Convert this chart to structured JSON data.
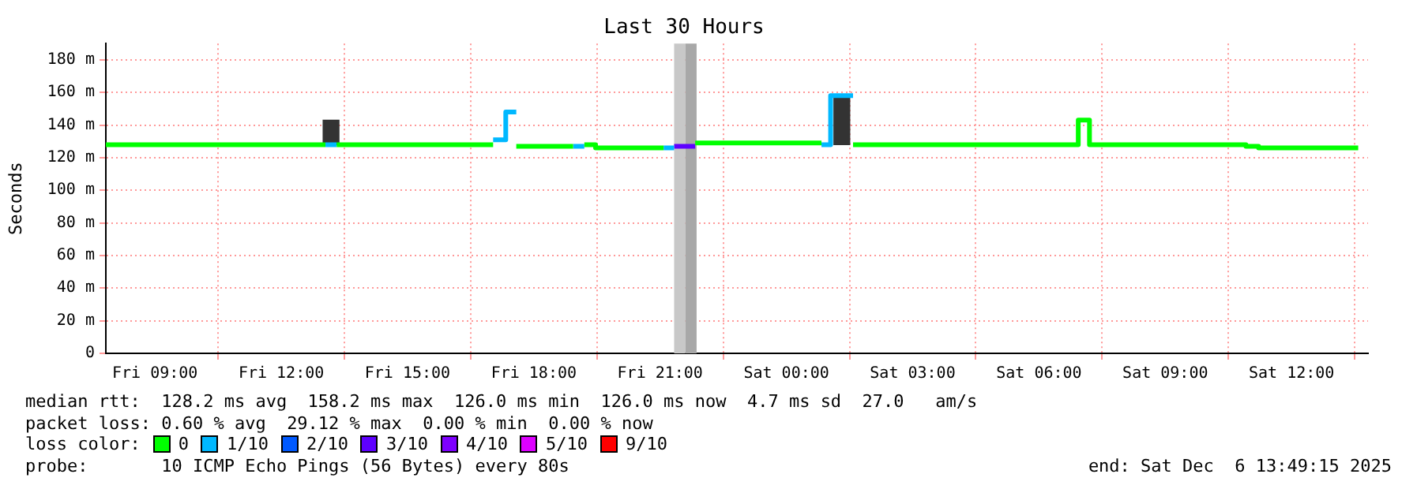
{
  "chart_data": {
    "type": "step",
    "title": "Last 30 Hours",
    "ylabel": "Seconds",
    "legend": "bottom left",
    "legend_title": "loss color:",
    "grid": true,
    "xlim": [
      "2025-12-05T07:50",
      "2025-12-06T13:49"
    ],
    "xticks": [
      {
        "value": "2025-12-05T09:00",
        "label": "Fri 09:00"
      },
      {
        "value": "2025-12-05T12:00",
        "label": "Fri 12:00"
      },
      {
        "value": "2025-12-05T15:00",
        "label": "Fri 15:00"
      },
      {
        "value": "2025-12-05T18:00",
        "label": "Fri 18:00"
      },
      {
        "value": "2025-12-05T21:00",
        "label": "Fri 21:00"
      },
      {
        "value": "2025-12-06T00:00",
        "label": "Sat 00:00"
      },
      {
        "value": "2025-12-06T03:00",
        "label": "Sat 03:00"
      },
      {
        "value": "2025-12-06T06:00",
        "label": "Sat 06:00"
      },
      {
        "value": "2025-12-06T09:00",
        "label": "Sat 09:00"
      },
      {
        "value": "2025-12-06T12:00",
        "label": "Sat 12:00"
      }
    ],
    "ylim": [
      0,
      190
    ],
    "yticks": [
      0,
      {
        "value": 20,
        "label": "20 m"
      },
      {
        "value": 40,
        "label": "40 m"
      },
      {
        "value": 60,
        "label": "60 m"
      },
      {
        "value": 80,
        "label": "80 m"
      },
      {
        "value": 100,
        "label": "100 m"
      },
      {
        "value": 120,
        "label": "120 m"
      },
      {
        "value": 140,
        "label": "140 m"
      },
      {
        "value": 160,
        "label": "160 m"
      },
      {
        "value": 180,
        "label": "180 m"
      }
    ],
    "bands": [
      {
        "axis": "x",
        "from": "2025-12-05T21:20",
        "to": "2025-12-05T21:36",
        "color": "#c8c8c8"
      },
      {
        "axis": "x",
        "from": "2025-12-05T21:36",
        "to": "2025-12-05T21:52",
        "color": "#a8a8a8"
      }
    ],
    "series": [
      {
        "type": "bar",
        "color": "#333333",
        "x": [
          "2025-12-05T13:11",
          "2025-12-06T01:19"
        ],
        "base": [
          128,
          128
        ],
        "values": [
          15,
          30
        ]
      },
      {
        "name": "0",
        "color": "#00ff00",
        "x": [
          "2025-12-05T07:50",
          "2025-12-05T13:03",
          null,
          "2025-12-05T13:19",
          "2025-12-05T17:02",
          null,
          "2025-12-05T17:35",
          "2025-12-05T18:56",
          null,
          "2025-12-05T19:12",
          "2025-12-05T19:28",
          "2025-12-05T21:05",
          null,
          "2025-12-05T21:50",
          "2025-12-06T00:50",
          null,
          "2025-12-06T01:35",
          "2025-12-06T06:56",
          "2025-12-06T07:12",
          "2025-12-06T10:55",
          "2025-12-06T11:13",
          "2025-12-06T13:35"
        ],
        "values": [
          128,
          128,
          null,
          128,
          128,
          null,
          127,
          127,
          null,
          128,
          126,
          126,
          null,
          129,
          129,
          null,
          128,
          143,
          128,
          127,
          126,
          126
        ]
      },
      {
        "name": "1/10",
        "color": "#00b8ff",
        "x": [
          "2025-12-05T13:03",
          "2025-12-05T13:19",
          null,
          "2025-12-05T17:02",
          "2025-12-05T17:20",
          "2025-12-05T17:35",
          null,
          "2025-12-05T18:56",
          "2025-12-05T19:12",
          null,
          "2025-12-05T21:05",
          "2025-12-05T21:20",
          null,
          "2025-12-06T00:50",
          "2025-12-06T01:03",
          "2025-12-06T01:35"
        ],
        "values": [
          128,
          128,
          null,
          131,
          148,
          148,
          null,
          127,
          127,
          null,
          126,
          126,
          null,
          128,
          158,
          158
        ]
      },
      {
        "name": "2/10",
        "color": "#0059ff"
      },
      {
        "name": "3/10",
        "color": "#5e00ff",
        "x": [
          "2025-12-05T21:20",
          "2025-12-05T21:50"
        ],
        "values": [
          127,
          127
        ]
      },
      {
        "name": "4/10",
        "color": "#7e00ff"
      },
      {
        "name": "5/10",
        "color": "#dd00ff"
      },
      {
        "name": "9/10",
        "color": "#ff0000"
      }
    ],
    "annotations": [
      "median rtt:  128.2 ms avg  158.2 ms max  126.0 ms min  126.0 ms now  4.7 ms sd  27.0   am/s",
      "packet loss: 0.60 % avg  29.12 % max  0.00 % min  0.00 % now",
      "probe:       10 ICMP Echo Pings (56 Bytes) every 80s",
      "end: Sat Dec  6 13:49:15 2025"
    ]
  }
}
